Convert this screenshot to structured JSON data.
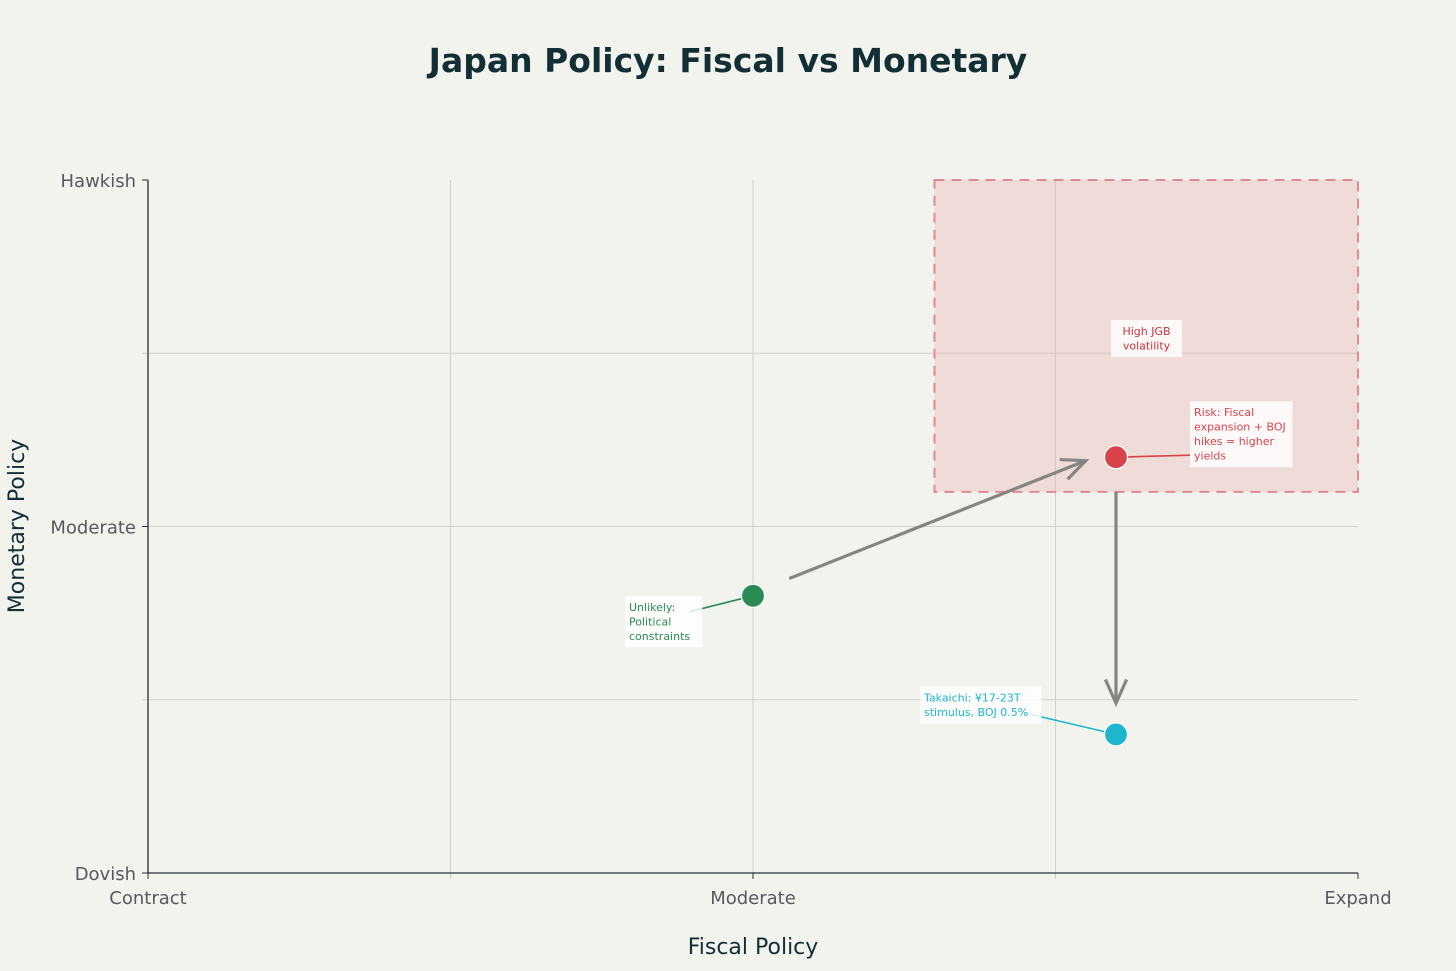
{
  "chart_data": {
    "type": "scatter",
    "title": "Japan Policy: Fiscal vs Monetary",
    "xlabel": "Fiscal Policy",
    "ylabel": "Monetary Policy",
    "xlim": [
      0,
      4
    ],
    "ylim": [
      0,
      4
    ],
    "grid": true,
    "x_ticks": [
      {
        "value": 0,
        "label": "Contract"
      },
      {
        "value": 2,
        "label": "Moderate"
      },
      {
        "value": 4,
        "label": "Expand"
      }
    ],
    "y_ticks": [
      {
        "value": 0,
        "label": "Dovish"
      },
      {
        "value": 2,
        "label": "Moderate"
      },
      {
        "value": 4,
        "label": "Hawkish"
      }
    ],
    "x_gridlines": [
      1,
      2,
      3
    ],
    "y_gridlines": [
      1,
      2,
      3
    ],
    "points": [
      {
        "x": 3.2,
        "y": 0.8,
        "color": "#1fb5cf",
        "label": "Takaichi: ¥17-23T stimulus, BOJ 0.5%"
      },
      {
        "x": 2.0,
        "y": 1.6,
        "color": "#2a8b55",
        "label": "Unlikely: Political constraints"
      },
      {
        "x": 3.2,
        "y": 2.4,
        "color": "#d9444a",
        "label": "Risk: Fiscal expansion + BOJ hikes = higher yields"
      }
    ],
    "region": {
      "x_range": [
        2.6,
        4.0
      ],
      "y_range": [
        2.2,
        4.0
      ],
      "color": "#e8a9a9",
      "label": "High JGB volatility",
      "label_color": "#c9343b"
    },
    "arrows": [
      {
        "from": [
          2.12,
          1.7
        ],
        "to": [
          3.1,
          2.38
        ],
        "color": "#858582"
      },
      {
        "from": [
          3.2,
          2.2
        ],
        "to": [
          3.2,
          0.98
        ],
        "color": "#858582"
      }
    ]
  }
}
